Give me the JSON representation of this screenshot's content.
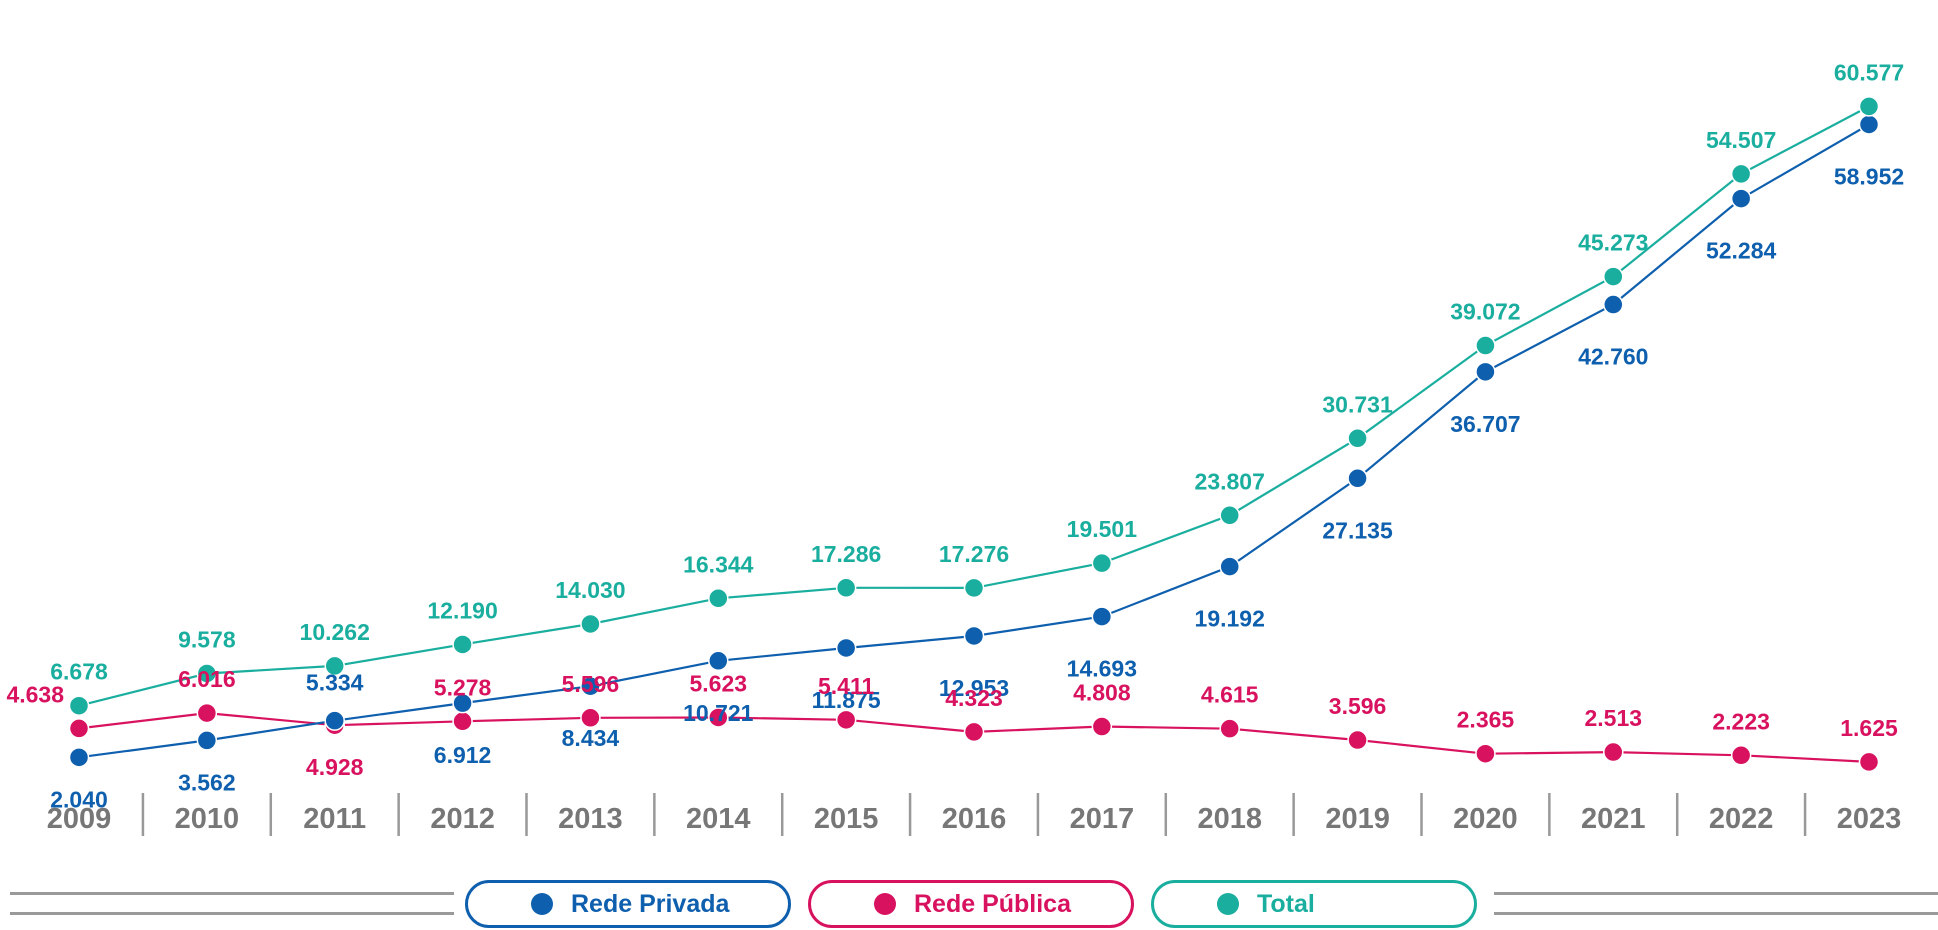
{
  "chart_data": {
    "type": "line",
    "categories": [
      "2009",
      "2010",
      "2011",
      "2012",
      "2013",
      "2014",
      "2015",
      "2016",
      "2017",
      "2018",
      "2019",
      "2020",
      "2021",
      "2022",
      "2023"
    ],
    "series": [
      {
        "name": "Total",
        "color": "#1aae9f",
        "values": [
          6678,
          9578,
          10262,
          12190,
          14030,
          16344,
          17286,
          17276,
          19501,
          23807,
          30731,
          39072,
          45273,
          54507,
          60577
        ],
        "labels": [
          "6.678",
          "9.578",
          "10.262",
          "12.190",
          "14.030",
          "16.344",
          "17.286",
          "17.276",
          "19.501",
          "23.807",
          "30.731",
          "39.072",
          "45.273",
          "54.507",
          "60.577"
        ]
      },
      {
        "name": "Rede Privada",
        "color": "#0e5fae",
        "values": [
          2040,
          3562,
          5334,
          6912,
          8434,
          10721,
          11875,
          12953,
          14693,
          19192,
          27135,
          36707,
          42760,
          52284,
          58952
        ],
        "labels": [
          "2.040",
          "3.562",
          "5.334",
          "6.912",
          "8.434",
          "10.721",
          "11.875",
          "12.953",
          "14.693",
          "19.192",
          "27.135",
          "36.707",
          "42.760",
          "52.284",
          "58.952"
        ]
      },
      {
        "name": "Rede Pública",
        "color": "#d8125f",
        "values": [
          4638,
          6016,
          4928,
          5278,
          5596,
          5623,
          5411,
          4323,
          4808,
          4615,
          3596,
          2365,
          2513,
          2223,
          1625
        ],
        "labels": [
          "4.638",
          "6.016",
          "4.928",
          "5.278",
          "5.596",
          "5.623",
          "5.411",
          "4.323",
          "4.808",
          "4.615",
          "3.596",
          "2.365",
          "2.513",
          "2.223",
          "1.625"
        ]
      }
    ],
    "title": "",
    "xlabel": "",
    "ylabel": "",
    "ylim": [
      0,
      62000
    ],
    "grid": false,
    "legend_position": "bottom-center"
  },
  "legend": {
    "private": {
      "label": "Rede Privada",
      "color": "#0e5fae"
    },
    "public": {
      "label": "Rede Pública",
      "color": "#d8125f"
    },
    "total": {
      "label": "Total",
      "color": "#1aae9f"
    }
  }
}
